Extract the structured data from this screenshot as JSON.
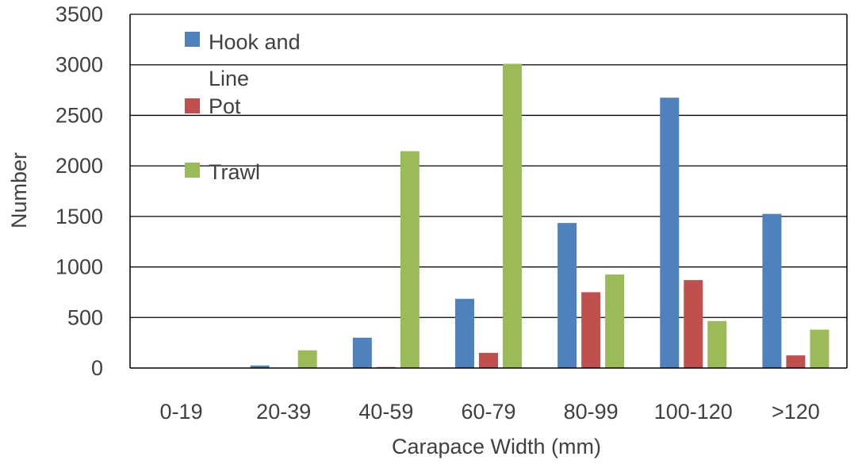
{
  "chart_data": {
    "type": "bar",
    "categories": [
      "0-19",
      "20-39",
      "40-59",
      "60-79",
      "80-99",
      "100-120",
      ">120"
    ],
    "series": [
      {
        "name": "Hook and Line",
        "color": "#4f81bd",
        "values": [
          0,
          25,
          300,
          685,
          1435,
          2675,
          1525
        ]
      },
      {
        "name": "Pot",
        "color": "#c0504d",
        "values": [
          0,
          0,
          10,
          150,
          750,
          870,
          125
        ]
      },
      {
        "name": "Trawl",
        "color": "#9bbb59",
        "values": [
          0,
          175,
          2145,
          3010,
          925,
          465,
          380
        ]
      }
    ],
    "legend_lines": [
      [
        "Hook and",
        "Line"
      ],
      [
        "Pot"
      ],
      [
        "Trawl"
      ]
    ],
    "legend_position": "top-left inside plot",
    "xlabel": "Carapace Width (mm)",
    "ylabel": "Number",
    "ylim": [
      0,
      3500
    ],
    "yticks": [
      0,
      500,
      1000,
      1500,
      2000,
      2500,
      3000,
      3500
    ],
    "grid": true
  }
}
